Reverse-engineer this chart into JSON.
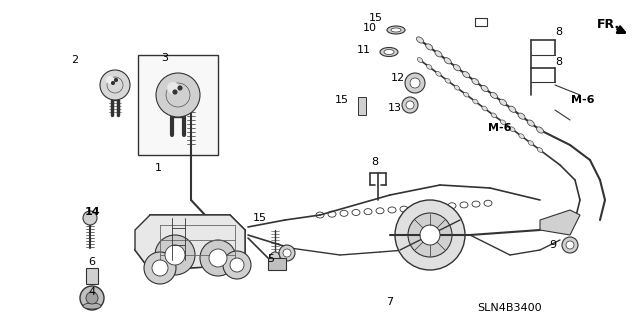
{
  "background_color": "#ffffff",
  "diagram_code": "SLN4B3400",
  "figsize": [
    6.4,
    3.19
  ],
  "dpi": 100
}
